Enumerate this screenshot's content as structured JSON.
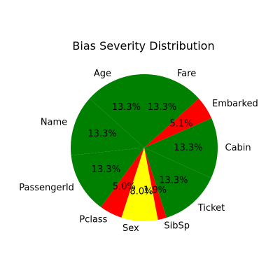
{
  "chart_data": {
    "type": "pie",
    "title": "Bias Severity Distribution",
    "start_angle_deg": 90,
    "direction": "counterclockwise",
    "slices": [
      {
        "label": "Age",
        "value": 13.3,
        "pct_text": "13.3%",
        "color": "#008000"
      },
      {
        "label": "Name",
        "value": 13.3,
        "pct_text": "13.3%",
        "color": "#008000"
      },
      {
        "label": "PassengerId",
        "value": 13.3,
        "pct_text": "13.3%",
        "color": "#008000"
      },
      {
        "label": "Pclass",
        "value": 5.0,
        "pct_text": "5.0%",
        "color": "#ff0000"
      },
      {
        "label": "Sex",
        "value": 8.0,
        "pct_text": "8.0%",
        "color": "#ffff00"
      },
      {
        "label": "SibSp",
        "value": 1.9,
        "pct_text": "1.9%",
        "color": "#ff0000"
      },
      {
        "label": "Ticket",
        "value": 13.3,
        "pct_text": "13.3%",
        "color": "#008000"
      },
      {
        "label": "Cabin",
        "value": 13.3,
        "pct_text": "13.3%",
        "color": "#008000"
      },
      {
        "label": "Embarked",
        "value": 5.1,
        "pct_text": "5.1%",
        "color": "#ff0000"
      },
      {
        "label": "Fare",
        "value": 13.3,
        "pct_text": "13.3%",
        "color": "#008000"
      }
    ]
  }
}
